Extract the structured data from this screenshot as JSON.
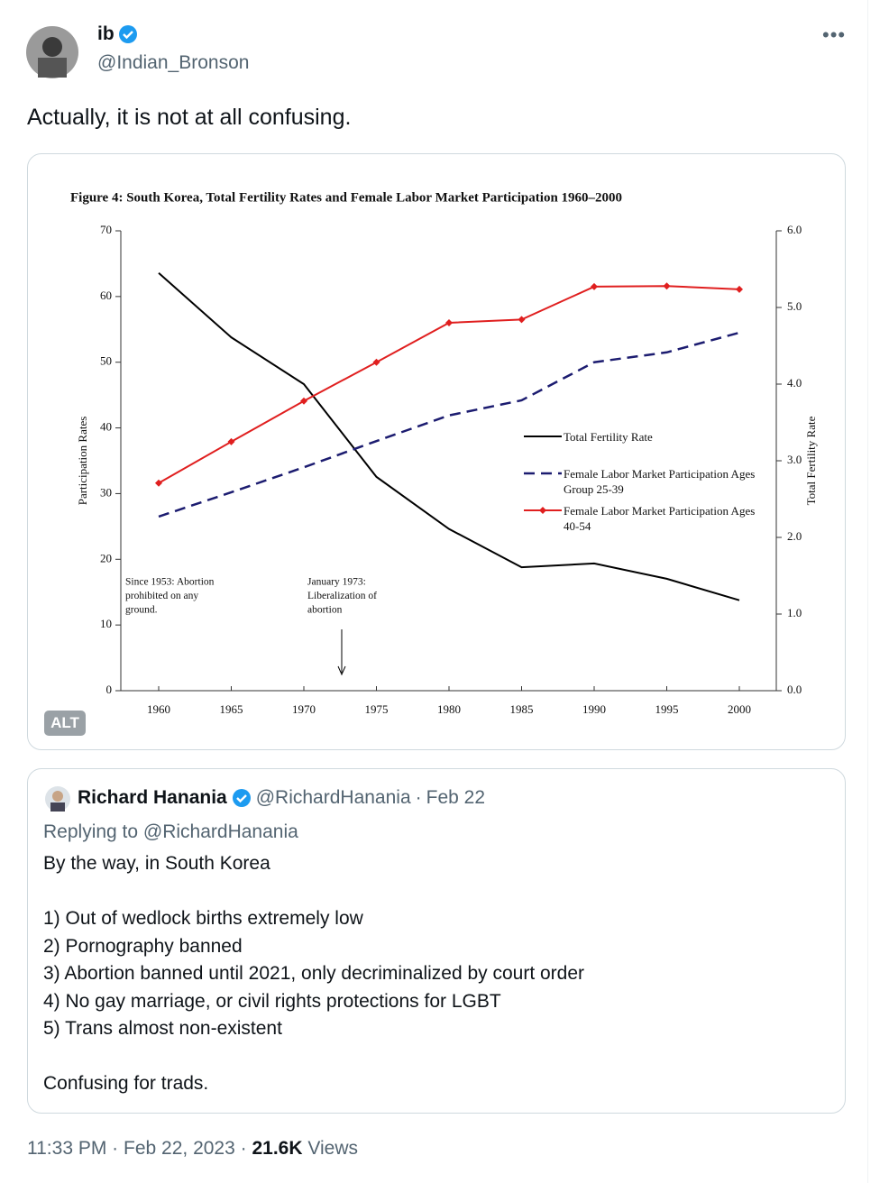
{
  "tweet": {
    "author": {
      "name": "ib",
      "handle": "@Indian_Bronson"
    },
    "text": "Actually, it is not at all confusing.",
    "alt_badge": "ALT",
    "quoted": {
      "name": "Richard Hanania",
      "handle": "@RichardHanania",
      "separator": "·",
      "date": "Feb 22",
      "replying_to": "Replying to @RichardHanania",
      "intro": "By the way, in South Korea",
      "list": [
        "1) Out of wedlock births extremely low",
        "2) Pornography banned",
        "3) Abortion banned until 2021, only decriminalized by court order",
        "4) No gay marriage, or civil rights protections for LGBT",
        "5) Trans almost non-existent"
      ],
      "closing": "Confusing for trads."
    },
    "footer": {
      "time": "11:33 PM",
      "sep1": "·",
      "date": "Feb 22, 2023",
      "sep2": "·",
      "views": "21.6K",
      "views_label": "Views"
    }
  },
  "chart_data": {
    "type": "line",
    "title": "Figure 4: South Korea, Total Fertility Rates and Female Labor Market Participation 1960–2000",
    "y_label": "Participation Rates",
    "y2_label": "Total Fertility Rate",
    "categories": [
      "1960",
      "1965",
      "1970",
      "1975",
      "1980",
      "1985",
      "1990",
      "1995",
      "2000"
    ],
    "ylim": [
      0,
      70
    ],
    "yticks": [
      0,
      10,
      20,
      30,
      40,
      50,
      60,
      70
    ],
    "y2lim": [
      0,
      6
    ],
    "y2ticks": [
      {
        "value": 0,
        "label": "0.0"
      },
      {
        "value": 1,
        "label": "1.0"
      },
      {
        "value": 2,
        "label": "2.0"
      },
      {
        "value": 3,
        "label": "3.0"
      },
      {
        "value": 4,
        "label": "4.0"
      },
      {
        "value": 5,
        "label": "5.0"
      },
      {
        "value": 6,
        "label": "6.0"
      }
    ],
    "series": [
      {
        "name": "Total Fertility Rate",
        "color": "#000000",
        "axis": "y2",
        "values": [
          5.45,
          4.61,
          4.0,
          2.79,
          2.11,
          1.61,
          1.66,
          1.46,
          1.18
        ]
      },
      {
        "name": "Female Labor Market Participation Ages Group 25-39",
        "color": "#1c1c70",
        "dash": true,
        "values": [
          26.5,
          30.2,
          34.0,
          38.0,
          41.9,
          44.2,
          50.0,
          51.5,
          54.5
        ]
      },
      {
        "name": "Female Labor Market Participation Ages 40-54",
        "color": "#e01f1f",
        "marker": "diamond",
        "values": [
          31.6,
          37.9,
          44.1,
          50.0,
          56.0,
          56.5,
          61.5,
          61.6,
          61.1
        ]
      }
    ],
    "annotations": [
      {
        "text": [
          "Since 1953: Abortion",
          "prohibited on any",
          "ground."
        ]
      },
      {
        "text": [
          "January 1973:",
          "Liberalization of",
          "abortion"
        ]
      }
    ]
  }
}
